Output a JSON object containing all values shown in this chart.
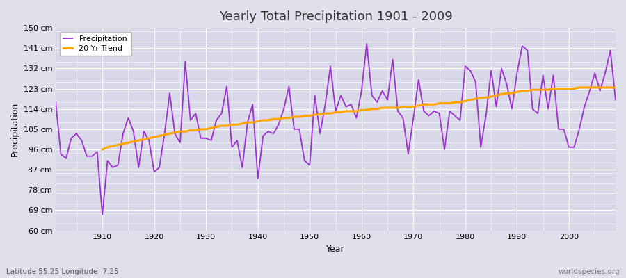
{
  "title": "Yearly Total Precipitation 1901 - 2009",
  "xlabel": "Year",
  "ylabel": "Precipitation",
  "subtitle": "Latitude 55.25 Longitude -7.25",
  "watermark": "worldspecies.org",
  "legend_labels": [
    "Precipitation",
    "20 Yr Trend"
  ],
  "precip_color": "#9B30D0",
  "trend_color": "#FFA500",
  "bg_color": "#E0E0EC",
  "plot_bg_color": "#D8D8E8",
  "grid_color": "#FFFFFF",
  "ylim": [
    60,
    150
  ],
  "yticks": [
    60,
    69,
    78,
    87,
    96,
    105,
    114,
    123,
    132,
    141,
    150
  ],
  "ytick_labels": [
    "60 cm",
    "69 cm",
    "78 cm",
    "87 cm",
    "96 cm",
    "105 cm",
    "114 cm",
    "123 cm",
    "132 cm",
    "141 cm",
    "150 cm"
  ],
  "xlim": [
    1901,
    2009
  ],
  "xticks": [
    1910,
    1920,
    1930,
    1940,
    1950,
    1960,
    1970,
    1980,
    1990,
    2000
  ],
  "years": [
    1901,
    1902,
    1903,
    1904,
    1905,
    1906,
    1907,
    1908,
    1909,
    1910,
    1911,
    1912,
    1913,
    1914,
    1915,
    1916,
    1917,
    1918,
    1919,
    1920,
    1921,
    1922,
    1923,
    1924,
    1925,
    1926,
    1927,
    1928,
    1929,
    1930,
    1931,
    1932,
    1933,
    1934,
    1935,
    1936,
    1937,
    1938,
    1939,
    1940,
    1941,
    1942,
    1943,
    1944,
    1945,
    1946,
    1947,
    1948,
    1949,
    1950,
    1951,
    1952,
    1953,
    1954,
    1955,
    1956,
    1957,
    1958,
    1959,
    1960,
    1961,
    1962,
    1963,
    1964,
    1965,
    1966,
    1967,
    1968,
    1969,
    1970,
    1971,
    1972,
    1973,
    1974,
    1975,
    1976,
    1977,
    1978,
    1979,
    1980,
    1981,
    1982,
    1983,
    1984,
    1985,
    1986,
    1987,
    1988,
    1989,
    1990,
    1991,
    1992,
    1993,
    1994,
    1995,
    1996,
    1997,
    1998,
    1999,
    2000,
    2001,
    2002,
    2003,
    2004,
    2005,
    2006,
    2007,
    2008,
    2009
  ],
  "precip": [
    117,
    94,
    92,
    101,
    103,
    100,
    93,
    93,
    95,
    67,
    91,
    88,
    89,
    103,
    110,
    104,
    88,
    104,
    100,
    86,
    88,
    103,
    121,
    103,
    99,
    135,
    109,
    112,
    101,
    101,
    100,
    109,
    112,
    124,
    97,
    100,
    88,
    108,
    116,
    83,
    102,
    104,
    103,
    107,
    114,
    124,
    105,
    105,
    91,
    89,
    120,
    103,
    116,
    133,
    113,
    120,
    115,
    116,
    110,
    122,
    143,
    120,
    117,
    122,
    118,
    136,
    113,
    110,
    94,
    110,
    127,
    113,
    111,
    113,
    112,
    96,
    113,
    111,
    109,
    133,
    131,
    126,
    97,
    111,
    131,
    115,
    132,
    125,
    114,
    130,
    142,
    140,
    114,
    112,
    129,
    114,
    129,
    105,
    105,
    97,
    97,
    105,
    115,
    122,
    130,
    122,
    130,
    140,
    118
  ],
  "trend_years": [
    1910,
    1911,
    1912,
    1913,
    1914,
    1915,
    1916,
    1917,
    1918,
    1919,
    1920,
    1921,
    1922,
    1923,
    1924,
    1925,
    1926,
    1927,
    1928,
    1929,
    1930,
    1931,
    1932,
    1933,
    1934,
    1935,
    1936,
    1937,
    1938,
    1939,
    1940,
    1941,
    1942,
    1943,
    1944,
    1945,
    1946,
    1947,
    1948,
    1949,
    1950,
    1951,
    1952,
    1953,
    1954,
    1955,
    1956,
    1957,
    1958,
    1959,
    1960,
    1961,
    1962,
    1963,
    1964,
    1965,
    1966,
    1967,
    1968,
    1969,
    1970,
    1971,
    1972,
    1973,
    1974,
    1975,
    1976,
    1977,
    1978,
    1979,
    1980,
    1981,
    1982,
    1983,
    1984,
    1985,
    1986,
    1987,
    1988,
    1989,
    1990,
    1991,
    1992,
    1993,
    1994,
    1995,
    1996,
    1997,
    1998,
    1999,
    2000,
    2001,
    2002,
    2003,
    2004,
    2005,
    2006,
    2007,
    2008,
    2009
  ],
  "trend": [
    96.0,
    97.0,
    97.5,
    98.0,
    98.5,
    99.0,
    99.5,
    100.0,
    100.5,
    101.0,
    101.5,
    102.0,
    102.5,
    103.0,
    103.5,
    104.0,
    104.0,
    104.5,
    104.5,
    105.0,
    105.0,
    105.5,
    106.0,
    106.5,
    106.5,
    107.0,
    107.0,
    107.5,
    108.0,
    108.0,
    108.5,
    109.0,
    109.0,
    109.5,
    109.5,
    110.0,
    110.0,
    110.5,
    110.5,
    111.0,
    111.0,
    111.5,
    111.5,
    112.0,
    112.0,
    112.5,
    112.5,
    113.0,
    113.0,
    113.0,
    113.5,
    113.5,
    114.0,
    114.0,
    114.5,
    114.5,
    114.5,
    114.5,
    115.0,
    115.0,
    115.0,
    115.5,
    116.0,
    116.0,
    116.0,
    116.5,
    116.5,
    116.5,
    117.0,
    117.0,
    117.5,
    118.0,
    118.5,
    119.0,
    119.0,
    119.5,
    120.0,
    120.5,
    121.0,
    121.0,
    121.5,
    122.0,
    122.0,
    122.5,
    122.5,
    122.5,
    122.5,
    123.0,
    123.0,
    123.0,
    123.0,
    123.0,
    123.5,
    123.5,
    123.5,
    123.5,
    123.5,
    123.5,
    123.5,
    123.5
  ]
}
